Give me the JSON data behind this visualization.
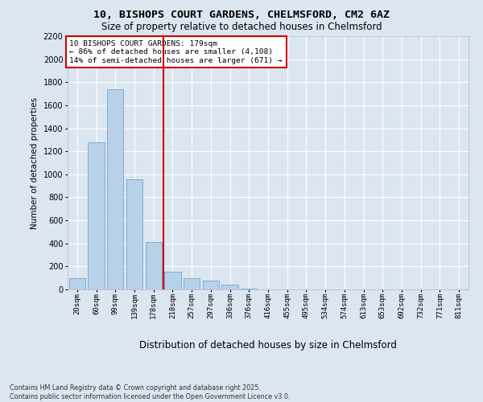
{
  "title_line1": "10, BISHOPS COURT GARDENS, CHELMSFORD, CM2 6AZ",
  "title_line2": "Size of property relative to detached houses in Chelmsford",
  "xlabel": "Distribution of detached houses by size in Chelmsford",
  "ylabel": "Number of detached properties",
  "annotation_line1": "10 BISHOPS COURT GARDENS: 179sqm",
  "annotation_line2": "← 86% of detached houses are smaller (4,108)",
  "annotation_line3": "14% of semi-detached houses are larger (671) →",
  "footer_line1": "Contains HM Land Registry data © Crown copyright and database right 2025.",
  "footer_line2": "Contains public sector information licensed under the Open Government Licence v3.0.",
  "bar_color": "#b8d0e8",
  "bar_edge_color": "#7aafd4",
  "background_color": "#dce6f1",
  "plot_bg_color": "#dce6f1",
  "grid_color": "#ffffff",
  "vline_color": "#cc0000",
  "annotation_box_color": "#cc0000",
  "categories": [
    "20sqm",
    "60sqm",
    "99sqm",
    "139sqm",
    "178sqm",
    "218sqm",
    "257sqm",
    "297sqm",
    "336sqm",
    "376sqm",
    "416sqm",
    "455sqm",
    "495sqm",
    "534sqm",
    "574sqm",
    "613sqm",
    "653sqm",
    "692sqm",
    "732sqm",
    "771sqm",
    "811sqm"
  ],
  "values": [
    100,
    1280,
    1740,
    960,
    410,
    155,
    100,
    75,
    45,
    10,
    3,
    1,
    1,
    0,
    0,
    0,
    0,
    0,
    0,
    0,
    0
  ],
  "vline_x_idx": 4,
  "ylim": [
    0,
    2200
  ],
  "yticks": [
    0,
    200,
    400,
    600,
    800,
    1000,
    1200,
    1400,
    1600,
    1800,
    2000,
    2200
  ]
}
